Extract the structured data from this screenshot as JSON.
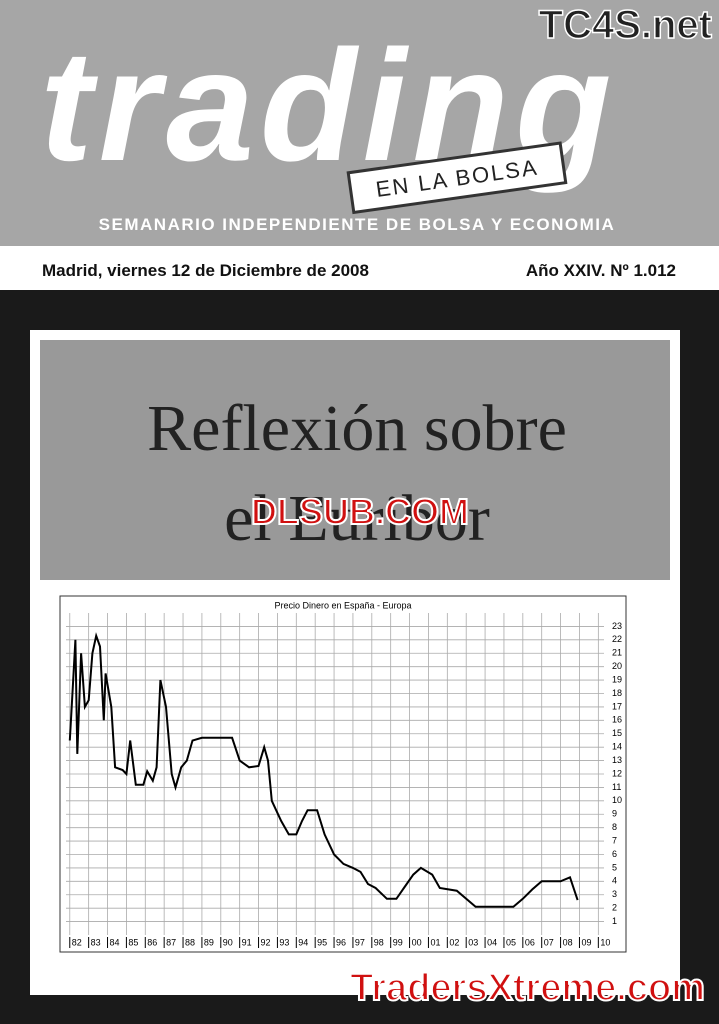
{
  "header": {
    "brand": "TC4S.net",
    "title": "trading",
    "tag": "EN LA BOLSA",
    "subtitle": "SEMANARIO INDEPENDIENTE DE BOLSA Y ECONOMIA"
  },
  "dateline": {
    "place_date": "Madrid, viernes 12 de Diciembre de 2008",
    "issue": "Año XXIV. Nº 1.012"
  },
  "headline": {
    "line1": "Reflexión sobre",
    "line2": "el Euribor"
  },
  "watermarks": {
    "top": "DLSUB.COM",
    "bottom": "TradersXtreme.com"
  },
  "chart_data": {
    "type": "line",
    "title": "Precio Dinero en España - Europa",
    "x": [
      1982.0,
      1982.1,
      1982.3,
      1982.4,
      1982.6,
      1982.8,
      1983.0,
      1983.2,
      1983.4,
      1983.6,
      1983.8,
      1983.9,
      1984.2,
      1984.4,
      1984.8,
      1985.0,
      1985.2,
      1985.5,
      1985.9,
      1986.1,
      1986.4,
      1986.6,
      1986.8,
      1987.1,
      1987.4,
      1987.6,
      1987.9,
      1988.2,
      1988.5,
      1989.0,
      1990.0,
      1990.6,
      1991.0,
      1991.5,
      1992.0,
      1992.3,
      1992.5,
      1992.7,
      1993.2,
      1993.6,
      1994.0,
      1994.3,
      1994.6,
      1995.1,
      1995.5,
      1996.0,
      1996.5,
      1997.0,
      1997.4,
      1997.8,
      1998.2,
      1998.8,
      1999.3,
      1999.7,
      2000.2,
      2000.6,
      2001.2,
      2001.6,
      2002.5,
      2003.0,
      2003.5,
      2005.5,
      2006.0,
      2006.5,
      2007.0,
      2008.0,
      2008.5,
      2008.9
    ],
    "series": [
      {
        "color": "#000000",
        "values": [
          14.5,
          17,
          22,
          13.5,
          21,
          17,
          17.5,
          21,
          22.3,
          21.5,
          16,
          19.5,
          17,
          12.5,
          12.3,
          12,
          14.5,
          11.2,
          11.2,
          12.2,
          11.5,
          12.5,
          19,
          17,
          12,
          11,
          12.5,
          13,
          14.5,
          14.7,
          14.7,
          14.7,
          13,
          12.5,
          12.6,
          14,
          13,
          10,
          8.5,
          7.5,
          7.5,
          8.5,
          9.3,
          9.3,
          7.5,
          6,
          5.3,
          5,
          4.7,
          3.8,
          3.5,
          2.7,
          2.7,
          3.5,
          4.5,
          5,
          4.5,
          3.5,
          3.3,
          2.7,
          2.1,
          2.1,
          2.7,
          3.4,
          4,
          4,
          4.3,
          2.6
        ]
      }
    ],
    "xlim": [
      1981.8,
      2010.3
    ],
    "xticks": [
      {
        "value": 1982,
        "label": "82"
      },
      {
        "value": 1983,
        "label": "83"
      },
      {
        "value": 1984,
        "label": "84"
      },
      {
        "value": 1985,
        "label": "85"
      },
      {
        "value": 1986,
        "label": "86"
      },
      {
        "value": 1987,
        "label": "87"
      },
      {
        "value": 1988,
        "label": "88"
      },
      {
        "value": 1989,
        "label": "89"
      },
      {
        "value": 1990,
        "label": "90"
      },
      {
        "value": 1991,
        "label": "91"
      },
      {
        "value": 1992,
        "label": "92"
      },
      {
        "value": 1993,
        "label": "93"
      },
      {
        "value": 1994,
        "label": "94"
      },
      {
        "value": 1995,
        "label": "95"
      },
      {
        "value": 1996,
        "label": "96"
      },
      {
        "value": 1997,
        "label": "97"
      },
      {
        "value": 1998,
        "label": "98"
      },
      {
        "value": 1999,
        "label": "99"
      },
      {
        "value": 2000,
        "label": "00"
      },
      {
        "value": 2001,
        "label": "01"
      },
      {
        "value": 2002,
        "label": "02"
      },
      {
        "value": 2003,
        "label": "03"
      },
      {
        "value": 2004,
        "label": "04"
      },
      {
        "value": 2005,
        "label": "05"
      },
      {
        "value": 2006,
        "label": "06"
      },
      {
        "value": 2007,
        "label": "07"
      },
      {
        "value": 2008,
        "label": "08"
      },
      {
        "value": 2009,
        "label": "09"
      },
      {
        "value": 2010,
        "label": "10"
      }
    ],
    "ylim": [
      0,
      24
    ],
    "yticks": [
      1,
      2,
      3,
      4,
      5,
      6,
      7,
      8,
      9,
      10,
      11,
      12,
      13,
      14,
      15,
      16,
      17,
      18,
      19,
      20,
      21,
      22,
      23
    ],
    "grid": true
  }
}
